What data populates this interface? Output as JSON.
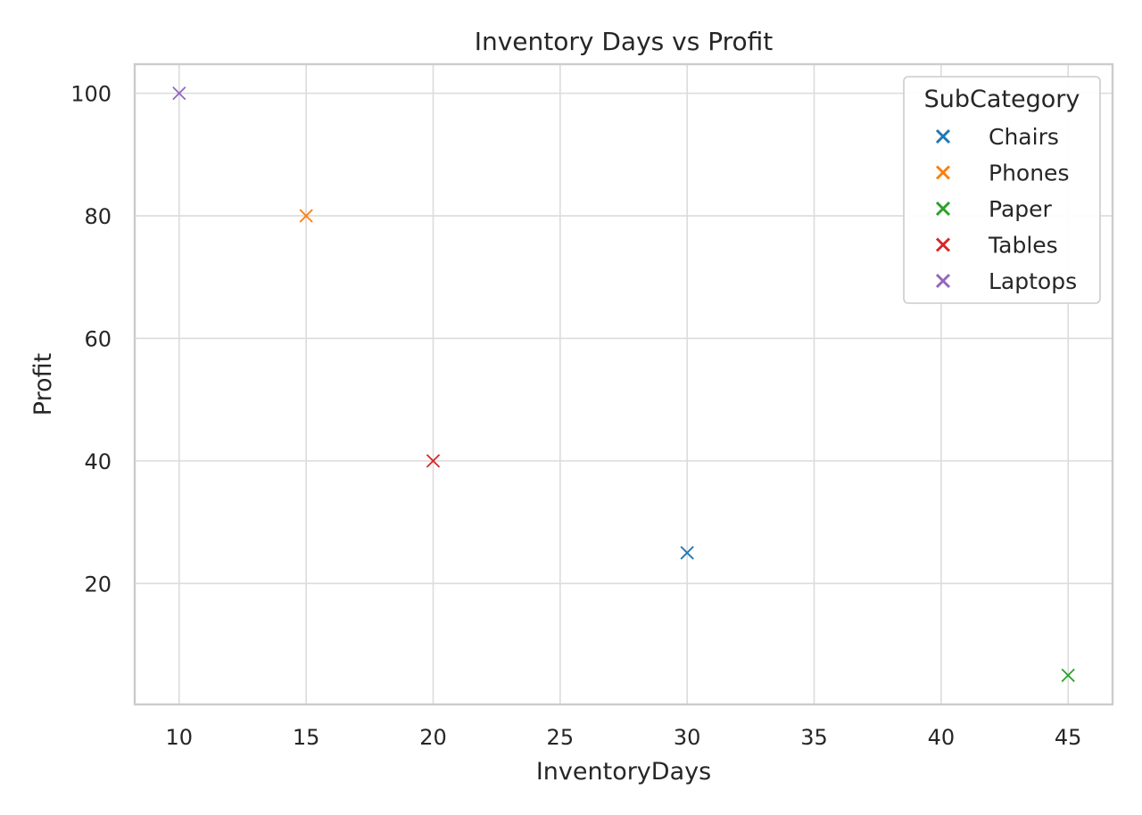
{
  "chart_data": {
    "type": "scatter",
    "title": "Inventory Days vs Profit",
    "xlabel": "InventoryDays",
    "ylabel": "Profit",
    "xlim": [
      8.25,
      46.75
    ],
    "ylim": [
      0.25,
      104.75
    ],
    "xticks": [
      10,
      15,
      20,
      25,
      30,
      35,
      40,
      45
    ],
    "yticks": [
      20,
      40,
      60,
      80,
      100
    ],
    "grid": true,
    "marker": "x",
    "legend": {
      "title": "SubCategory",
      "placement": "top-right"
    },
    "series": [
      {
        "name": "Chairs",
        "color": "#1f77b4",
        "points": [
          {
            "x": 30,
            "y": 25
          }
        ]
      },
      {
        "name": "Phones",
        "color": "#ff7f0e",
        "points": [
          {
            "x": 15,
            "y": 80
          }
        ]
      },
      {
        "name": "Paper",
        "color": "#2ca02c",
        "points": [
          {
            "x": 45,
            "y": 5
          }
        ]
      },
      {
        "name": "Tables",
        "color": "#d62728",
        "points": [
          {
            "x": 20,
            "y": 40
          }
        ]
      },
      {
        "name": "Laptops",
        "color": "#9467bd",
        "points": [
          {
            "x": 10,
            "y": 100
          }
        ]
      }
    ]
  }
}
